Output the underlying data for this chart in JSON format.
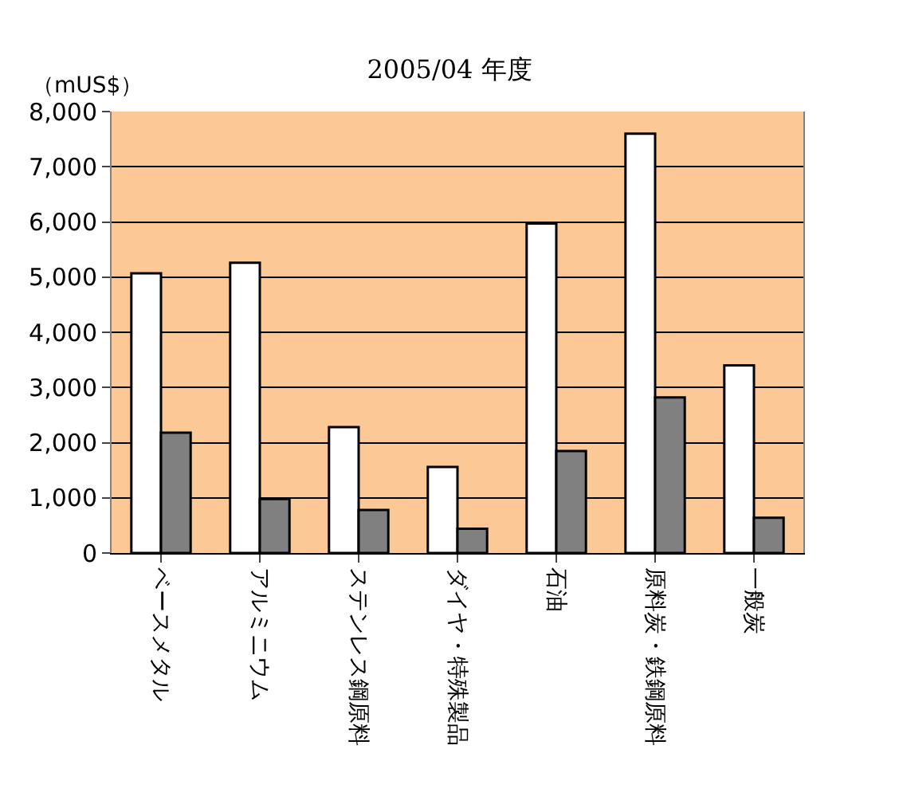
{
  "chart_data": {
    "type": "bar",
    "title": "2005/04 年度",
    "ylabel": "（mUS$）",
    "categories": [
      "ベースメタル",
      "アルミニウム",
      "ステンレス鋼原料",
      "ダイヤ・特殊製品",
      "石油",
      "原料炭・鉄鋼原料",
      "一般炭"
    ],
    "series": [
      {
        "color": "#ffffff",
        "values": [
          5070,
          5260,
          2280,
          1560,
          5970,
          7600,
          3400
        ]
      },
      {
        "color": "#808080",
        "values": [
          2180,
          980,
          780,
          440,
          1850,
          2820,
          640
        ]
      }
    ],
    "ylim": [
      0,
      8000
    ],
    "yticks": [
      {
        "value": 0,
        "label": "0"
      },
      {
        "value": 1000,
        "label": "1,000"
      },
      {
        "value": 2000,
        "label": "2,000"
      },
      {
        "value": 3000,
        "label": "3,000"
      },
      {
        "value": 4000,
        "label": "4,000"
      },
      {
        "value": 5000,
        "label": "5,000"
      },
      {
        "value": 6000,
        "label": "6,000"
      },
      {
        "value": 7000,
        "label": "7,000"
      },
      {
        "value": 8000,
        "label": "8,000"
      }
    ],
    "grid": "y"
  }
}
